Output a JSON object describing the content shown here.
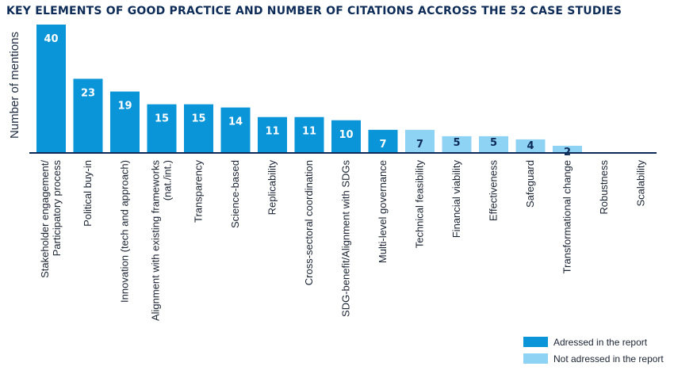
{
  "chart_data": {
    "type": "bar",
    "title": "KEY ELEMENTS OF GOOD PRACTICE AND NUMBER OF CITATIONS ACCROSS THE 52 CASE STUDIES",
    "ylabel": "Number of mentions",
    "xlabel": "",
    "ylim": [
      0,
      40
    ],
    "grid": false,
    "categories": [
      [
        "Stakeholder engagement/",
        "Participatory process"
      ],
      [
        "Political buy-in"
      ],
      [
        "Innovation (tech and approach)"
      ],
      [
        "Alignment with existing frameworks",
        "(nat./int.)"
      ],
      [
        "Transparency"
      ],
      [
        "Science-based"
      ],
      [
        "Replicability"
      ],
      [
        "Cross-sectoral coordination"
      ],
      [
        "SDG-benefit/Alignment with SDGs"
      ],
      [
        "Multi-level governance"
      ],
      [
        "Technical feasibility"
      ],
      [
        "Financial viability"
      ],
      [
        "Effectiveness"
      ],
      [
        "Safeguard"
      ],
      [
        "Transformational change"
      ],
      [
        "Robustness"
      ],
      [
        "Scalability"
      ]
    ],
    "values": [
      40,
      23,
      19,
      15,
      15,
      14,
      11,
      11,
      10,
      7,
      7,
      5,
      5,
      4,
      2,
      0,
      0
    ],
    "value_labels": [
      "40",
      "23",
      "19",
      "15",
      "15",
      "14",
      "11",
      "11",
      "10",
      "7",
      "7",
      "5",
      "5",
      "4",
      "2",
      "",
      ""
    ],
    "group": [
      "addressed",
      "addressed",
      "addressed",
      "addressed",
      "addressed",
      "addressed",
      "addressed",
      "addressed",
      "addressed",
      "addressed",
      "not_addressed",
      "not_addressed",
      "not_addressed",
      "not_addressed",
      "not_addressed",
      "not_addressed",
      "not_addressed"
    ],
    "legend": {
      "position": "bottom-right",
      "items": [
        {
          "key": "addressed",
          "label": "Adressed in the report",
          "color": "#0a95d9"
        },
        {
          "key": "not_addressed",
          "label": "Not adressed in the report",
          "color": "#8fd3f4"
        }
      ]
    },
    "colors": {
      "addressed": "#0a95d9",
      "not_addressed": "#8fd3f4",
      "label_on_dark": "#ffffff",
      "label_on_light": "#0d2b57",
      "axis": "#0d2b57",
      "title": "#0d2b57"
    }
  }
}
